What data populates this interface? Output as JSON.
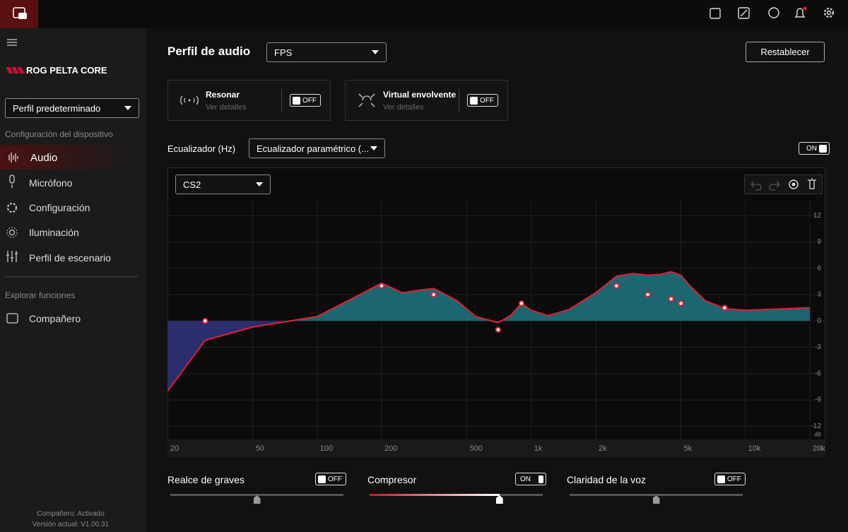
{
  "sidebar": {
    "device": "ROG PELTA CORE",
    "profile": "Perfil predeterminado",
    "section1": "Configuración del dispositivo",
    "menu": [
      "Audio",
      "Micrófono",
      "Configuración",
      "Iluminación",
      "Perfil de escenario"
    ],
    "section2": "Explorar funciones",
    "menu2": [
      "Compañero"
    ],
    "footer": [
      "Compañero: Activado",
      "Versión actual: V1.00.31"
    ]
  },
  "main": {
    "title": "Perfil de audio",
    "profile_select": "FPS",
    "reset": "Restablecer",
    "cards": [
      {
        "title": "Resonar",
        "subtitle": "Ver detalles",
        "toggle": "OFF"
      },
      {
        "title": "Virtual envolvente",
        "subtitle": "Ver detalles",
        "toggle": "OFF"
      }
    ],
    "eq_label": "Ecualizador (Hz)",
    "eq_select": "Ecualizador paramétrico (...",
    "eq_toggle": "ON",
    "preset": "CS2",
    "bottom": [
      {
        "label": "Realce de graves",
        "toggle": "OFF",
        "slider": 50
      },
      {
        "label": "Compresor",
        "toggle": "ON",
        "slider": 75
      },
      {
        "label": "Claridad de la voz",
        "toggle": "OFF",
        "slider": 50
      }
    ]
  },
  "chart_data": {
    "type": "line",
    "log_x": true,
    "grid": true,
    "x_unit": "Hz",
    "y_unit": "dB",
    "x": [
      20,
      30,
      50,
      100,
      150,
      200,
      250,
      300,
      350,
      450,
      550,
      700,
      800,
      900,
      1000,
      1200,
      1500,
      2000,
      2500,
      3000,
      3500,
      4000,
      4500,
      5000,
      5500,
      6500,
      8000,
      10000,
      20000
    ],
    "values": [
      -8,
      -2.2,
      -0.7,
      0.5,
      2.7,
      4.3,
      3.2,
      3.5,
      3.7,
      2.3,
      0.5,
      -0.2,
      0.6,
      2,
      1.2,
      0.6,
      1.3,
      3.2,
      5.1,
      5.4,
      5.2,
      5.3,
      5.6,
      5.2,
      4,
      2.3,
      1.4,
      1.2,
      1.5
    ],
    "line_color": "#e0203a",
    "positive_color": "#1c6670",
    "negative_color": "#2c2d6c",
    "points": {
      "x": [
        30,
        200,
        350,
        700,
        900,
        2500,
        3500,
        4500,
        5000,
        8000
      ],
      "values": [
        0,
        4,
        3,
        -1,
        2,
        4,
        3,
        2.5,
        2,
        1.5
      ]
    },
    "xlim": [
      20,
      20000
    ],
    "ylim": [
      -13.5,
      13.7
    ],
    "xticks": [
      20,
      50,
      100,
      200,
      500,
      {
        "value": 1000,
        "label": "1k"
      },
      {
        "value": 2000,
        "label": "2k"
      },
      {
        "value": 5000,
        "label": "5k"
      },
      {
        "value": 10000,
        "label": "10k"
      },
      {
        "value": 20000,
        "label": "20k"
      }
    ],
    "yticks": [
      12,
      9,
      6,
      3,
      0,
      -3,
      -6,
      -9,
      -12
    ]
  }
}
